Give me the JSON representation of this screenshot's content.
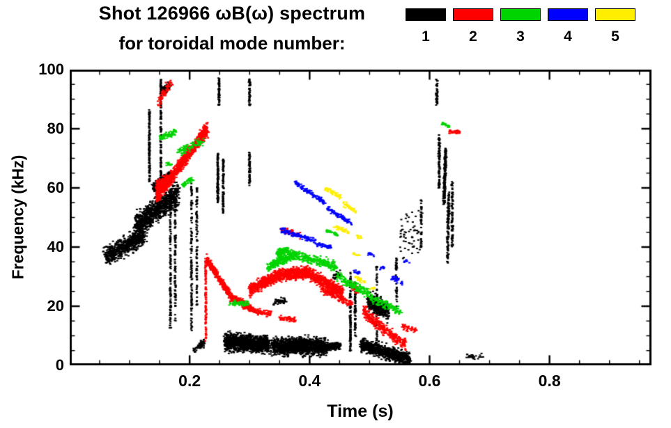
{
  "chart_data": {
    "type": "scatter",
    "title": "Shot 126966 ωB(ω) spectrum",
    "subtitle": "for toroidal mode number:",
    "xlabel": "Time (s)",
    "ylabel": "Frequency (kHz)",
    "xlim": [
      0,
      0.97
    ],
    "ylim": [
      0,
      100
    ],
    "xticks": {
      "values": [
        0.2,
        0.4,
        0.6,
        0.8
      ],
      "labels": [
        "0.2",
        "0.4",
        "0.6",
        "0.8"
      ]
    },
    "yticks": {
      "values": [
        0,
        20,
        40,
        60,
        80,
        100
      ],
      "labels": [
        "0",
        "20",
        "40",
        "60",
        "80",
        "100"
      ]
    },
    "x_minor_step": 0.05,
    "y_minor_step": 5,
    "grid": false,
    "legend_position": "top-right",
    "legend": [
      {
        "mode": "1",
        "color": "#000000"
      },
      {
        "mode": "2",
        "color": "#ff0000"
      },
      {
        "mode": "3",
        "color": "#00d400"
      },
      {
        "mode": "4",
        "color": "#0000ff"
      },
      {
        "mode": "5",
        "color": "#ffee00"
      }
    ],
    "cluster_format": "[t0,f0,t1,f1,t_jitter,f_jitter,n_points]",
    "series": [
      {
        "name": "n=1",
        "color": "#000000",
        "point_w": 3,
        "point_h": 2,
        "clusters": [
          [
            0.06,
            37,
            0.125,
            44,
            0.006,
            4.5,
            700
          ],
          [
            0.11,
            47,
            0.18,
            58,
            0.006,
            6,
            900
          ],
          [
            0.14,
            60,
            0.168,
            64,
            0.004,
            2.5,
            300
          ],
          [
            0.133,
            62,
            0.133,
            86,
            0.0015,
            0.5,
            130
          ],
          [
            0.152,
            60,
            0.152,
            97,
            0.0015,
            0.5,
            150
          ],
          [
            0.155,
            93,
            0.168,
            95,
            0.003,
            2,
            40
          ],
          [
            0.168,
            12,
            0.168,
            60,
            0.0015,
            0.5,
            140
          ],
          [
            0.176,
            15,
            0.176,
            55,
            0.0015,
            0.5,
            100
          ],
          [
            0.203,
            12,
            0.203,
            62,
            0.0015,
            0.5,
            130
          ],
          [
            0.212,
            20,
            0.212,
            60,
            0.0015,
            0.5,
            90
          ],
          [
            0.207,
            5,
            0.225,
            8,
            0.003,
            2,
            60
          ],
          [
            0.247,
            55,
            0.247,
            72,
            0.0015,
            0.5,
            120
          ],
          [
            0.249,
            88,
            0.249,
            97,
            0.0015,
            0.5,
            60
          ],
          [
            0.256,
            50,
            0.256,
            70,
            0.0015,
            0.5,
            80
          ],
          [
            0.3,
            88,
            0.3,
            97,
            0.002,
            0.5,
            50
          ],
          [
            0.3,
            60,
            0.3,
            72,
            0.0015,
            0.5,
            60
          ],
          [
            0.258,
            8,
            0.332,
            7,
            0.004,
            4.2,
            1200
          ],
          [
            0.338,
            6.5,
            0.428,
            6.5,
            0.005,
            4.2,
            1400
          ],
          [
            0.428,
            6,
            0.452,
            7,
            0.003,
            2,
            150
          ],
          [
            0.34,
            21,
            0.36,
            22,
            0.003,
            1.5,
            50
          ],
          [
            0.44,
            30,
            0.45,
            31,
            0.003,
            1.5,
            30
          ],
          [
            0.468,
            5,
            0.468,
            32,
            0.0015,
            0.5,
            120
          ],
          [
            0.476,
            10,
            0.476,
            28,
            0.0015,
            0.5,
            80
          ],
          [
            0.485,
            7,
            0.567,
            2,
            0.004,
            3.2,
            900
          ],
          [
            0.497,
            22,
            0.532,
            18,
            0.003,
            4.5,
            400
          ],
          [
            0.512,
            8,
            0.512,
            34,
            0.0015,
            0.5,
            70
          ],
          [
            0.545,
            20,
            0.545,
            38,
            0.002,
            0.6,
            40
          ],
          [
            0.55,
            45,
            0.585,
            45,
            0.006,
            11,
            60
          ],
          [
            0.586,
            40,
            0.586,
            56,
            0.0015,
            0.5,
            45
          ],
          [
            0.612,
            88,
            0.612,
            97,
            0.002,
            0.5,
            45
          ],
          [
            0.616,
            60,
            0.616,
            78,
            0.002,
            0.5,
            90
          ],
          [
            0.624,
            55,
            0.627,
            73,
            0.0025,
            1.2,
            200
          ],
          [
            0.63,
            35,
            0.632,
            58,
            0.0025,
            1.2,
            120
          ],
          [
            0.638,
            40,
            0.638,
            62,
            0.002,
            0.8,
            90
          ],
          [
            0.663,
            3,
            0.69,
            3,
            0.004,
            1.5,
            30
          ]
        ]
      },
      {
        "name": "n=2",
        "color": "#ff0000",
        "point_w": 3,
        "point_h": 2,
        "clusters": [
          [
            0.145,
            57,
            0.23,
            80,
            0.003,
            3.2,
            1000
          ],
          [
            0.145,
            60,
            0.165,
            62,
            0.003,
            3.5,
            300
          ],
          [
            0.148,
            89,
            0.17,
            96,
            0.004,
            2.5,
            70
          ],
          [
            0.227,
            8,
            0.227,
            36,
            0.0015,
            0.5,
            110
          ],
          [
            0.228,
            36,
            0.27,
            23,
            0.0025,
            2.2,
            350
          ],
          [
            0.27,
            23,
            0.305,
            19,
            0.0025,
            1.8,
            250
          ],
          [
            0.305,
            18.5,
            0.335,
            17.5,
            0.003,
            1.4,
            90
          ],
          [
            0.35,
            16,
            0.376,
            15.5,
            0.003,
            1.2,
            60
          ],
          [
            0.3,
            25.5,
            0.35,
            30.5,
            0.003,
            2.8,
            450
          ],
          [
            0.35,
            30.5,
            0.4,
            31.5,
            0.003,
            3.0,
            500
          ],
          [
            0.4,
            31,
            0.455,
            24.5,
            0.003,
            3.0,
            500
          ],
          [
            0.42,
            25.5,
            0.47,
            21,
            0.003,
            2.0,
            150
          ],
          [
            0.35,
            46,
            0.385,
            44,
            0.003,
            1.8,
            50
          ],
          [
            0.47,
            27,
            0.482,
            25,
            0.002,
            2.0,
            40
          ],
          [
            0.49,
            18,
            0.525,
            12,
            0.003,
            3.0,
            200
          ],
          [
            0.525,
            12,
            0.56,
            7,
            0.003,
            2.6,
            150
          ],
          [
            0.555,
            13,
            0.578,
            12,
            0.003,
            1.5,
            40
          ],
          [
            0.632,
            79,
            0.65,
            79,
            0.003,
            1.2,
            35
          ]
        ]
      },
      {
        "name": "n=3",
        "color": "#00d400",
        "point_w": 3,
        "point_h": 2,
        "clusters": [
          [
            0.15,
            77,
            0.178,
            79,
            0.003,
            1.5,
            70
          ],
          [
            0.18,
            72,
            0.222,
            76,
            0.004,
            2.0,
            90
          ],
          [
            0.188,
            61,
            0.205,
            63,
            0.003,
            1.5,
            45
          ],
          [
            0.16,
            68,
            0.17,
            68,
            0.002,
            1.0,
            15
          ],
          [
            0.268,
            21,
            0.3,
            21,
            0.003,
            1.4,
            60
          ],
          [
            0.33,
            33.5,
            0.375,
            37.5,
            0.003,
            2.4,
            260
          ],
          [
            0.375,
            37.5,
            0.445,
            33.5,
            0.003,
            2.4,
            260
          ],
          [
            0.345,
            38,
            0.365,
            39,
            0.003,
            1.8,
            120
          ],
          [
            0.428,
            46,
            0.448,
            44,
            0.003,
            1.2,
            30
          ],
          [
            0.445,
            30,
            0.5,
            24,
            0.003,
            2.2,
            170
          ],
          [
            0.5,
            23,
            0.552,
            18,
            0.003,
            2.2,
            130
          ],
          [
            0.62,
            82,
            0.633,
            81,
            0.002,
            1.0,
            25
          ]
        ]
      },
      {
        "name": "n=4",
        "color": "#0000ff",
        "point_w": 3,
        "point_h": 2,
        "clusters": [
          [
            0.375,
            62,
            0.425,
            55,
            0.0025,
            1.2,
            130
          ],
          [
            0.43,
            53,
            0.47,
            48,
            0.0025,
            1.2,
            90
          ],
          [
            0.35,
            46,
            0.41,
            42,
            0.0025,
            1.3,
            130
          ],
          [
            0.413,
            41,
            0.437,
            40,
            0.0025,
            1.0,
            45
          ],
          [
            0.473,
            32,
            0.483,
            31,
            0.002,
            1.0,
            18
          ],
          [
            0.498,
            38,
            0.508,
            37,
            0.002,
            1.0,
            15
          ],
          [
            0.516,
            33,
            0.524,
            33,
            0.002,
            0.8,
            10
          ],
          [
            0.535,
            30,
            0.557,
            28,
            0.003,
            1.4,
            35
          ],
          [
            0.558,
            35,
            0.566,
            35,
            0.002,
            0.8,
            10
          ]
        ]
      },
      {
        "name": "n=5",
        "color": "#ffee00",
        "point_w": 3,
        "point_h": 2,
        "clusters": [
          [
            0.425,
            60,
            0.452,
            57,
            0.0025,
            1.2,
            60
          ],
          [
            0.455,
            55,
            0.478,
            52,
            0.0025,
            1.2,
            45
          ],
          [
            0.44,
            47,
            0.465,
            45,
            0.0025,
            1.1,
            40
          ],
          [
            0.478,
            44,
            0.486,
            43,
            0.002,
            0.8,
            12
          ],
          [
            0.473,
            38,
            0.483,
            37,
            0.002,
            0.8,
            15
          ],
          [
            0.475,
            30,
            0.492,
            28,
            0.0025,
            1.2,
            30
          ],
          [
            0.5,
            26,
            0.508,
            26,
            0.002,
            0.8,
            10
          ]
        ]
      }
    ]
  }
}
